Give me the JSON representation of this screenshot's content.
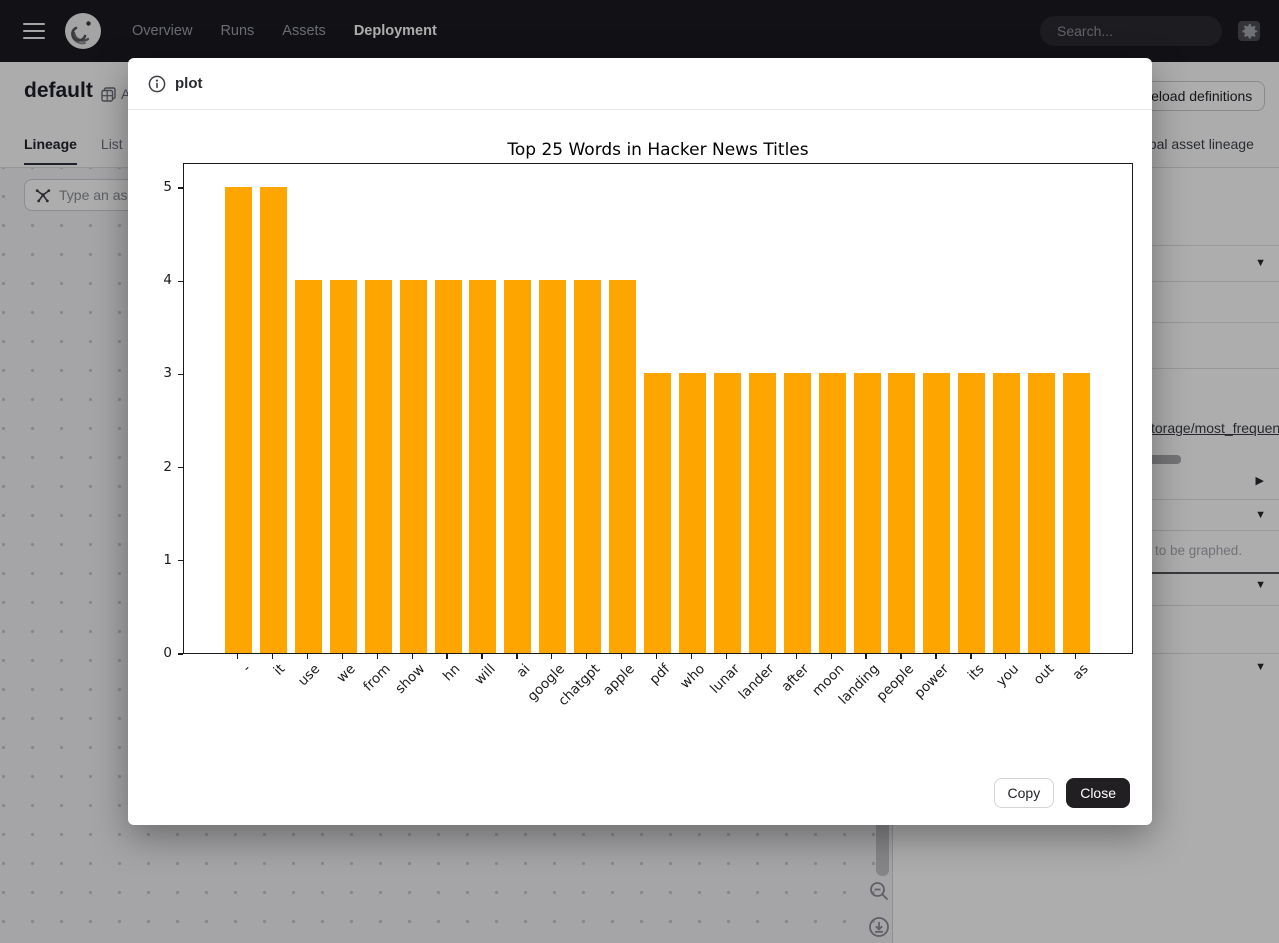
{
  "nav": {
    "items": [
      {
        "label": "Overview",
        "active": false
      },
      {
        "label": "Runs",
        "active": false
      },
      {
        "label": "Assets",
        "active": false
      },
      {
        "label": "Deployment",
        "active": true
      }
    ],
    "search": {
      "placeholder": "Search...",
      "shortcut": "/"
    }
  },
  "page": {
    "title": "default",
    "title_tag": "Assets",
    "reload_button": "Reload definitions",
    "global_lineage_link": "Global asset lineage",
    "tabs": [
      {
        "label": "Lineage",
        "active": true
      },
      {
        "label": "List",
        "active": false
      }
    ],
    "asset_search_placeholder": "Type an asset subset…",
    "side_panel": {
      "asset_path_link": "storage/most_frequent_words",
      "hint_fragment": "to be graphed."
    }
  },
  "modal": {
    "title": "plot",
    "copy_label": "Copy",
    "close_label": "Close"
  },
  "chart_data": {
    "type": "bar",
    "title": "Top 25 Words in Hacker News Titles",
    "categories": [
      "-",
      "it",
      "use",
      "we",
      "from",
      "show",
      "hn",
      "will",
      "ai",
      "google",
      "chatgpt",
      "apple",
      "pdf",
      "who",
      "lunar",
      "lander",
      "after",
      "moon",
      "landing",
      "people",
      "power",
      "its",
      "you",
      "out",
      "as"
    ],
    "values": [
      5,
      5,
      4,
      4,
      4,
      4,
      4,
      4,
      4,
      4,
      4,
      4,
      3,
      3,
      3,
      3,
      3,
      3,
      3,
      3,
      3,
      3,
      3,
      3,
      3
    ],
    "xlabel": "",
    "ylabel": "",
    "yticks": [
      0,
      1,
      2,
      3,
      4,
      5
    ],
    "ylim": [
      0,
      5.27
    ],
    "grid": false,
    "bar_color": "#FFA500",
    "x_label_rotation": 45
  }
}
